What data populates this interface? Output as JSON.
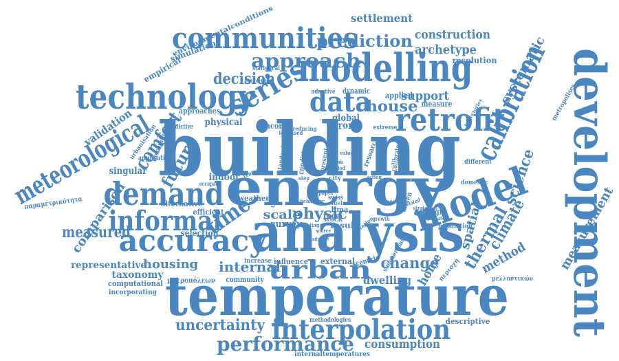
{
  "color": "#4a86bf",
  "words": [
    {
      "text": "building"
    },
    {
      "text": "energy"
    },
    {
      "text": "analysis"
    },
    {
      "text": "temperature"
    },
    {
      "text": "development"
    },
    {
      "text": "modelling"
    },
    {
      "text": "communities"
    },
    {
      "text": "technology"
    },
    {
      "text": "model"
    },
    {
      "text": "retrofit"
    },
    {
      "text": "calibration"
    },
    {
      "text": "interpolation"
    },
    {
      "text": "accuracy"
    },
    {
      "text": "demand"
    },
    {
      "text": "informal"
    },
    {
      "text": "urban"
    },
    {
      "text": "data"
    },
    {
      "text": "series"
    },
    {
      "text": "meteorological"
    },
    {
      "text": "approach"
    },
    {
      "text": "prediction"
    },
    {
      "text": "performance"
    },
    {
      "text": "uncertainty"
    },
    {
      "text": "house"
    },
    {
      "text": "time"
    },
    {
      "text": "comfort"
    },
    {
      "text": "future"
    },
    {
      "text": "decision"
    },
    {
      "text": "thermal"
    },
    {
      "text": "climate"
    },
    {
      "text": "science"
    },
    {
      "text": "systematic"
    },
    {
      "text": "spatial"
    },
    {
      "text": "method"
    },
    {
      "text": "measurement"
    },
    {
      "text": "settlement"
    },
    {
      "text": "construction"
    },
    {
      "text": "archetype"
    },
    {
      "text": "internal"
    },
    {
      "text": "housing"
    },
    {
      "text": "change"
    },
    {
      "text": "measured"
    },
    {
      "text": "consumption"
    },
    {
      "text": "dwelling"
    },
    {
      "text": "home"
    },
    {
      "text": "scale"
    },
    {
      "text": "physic"
    },
    {
      "text": "comparison"
    },
    {
      "text": "support"
    },
    {
      "text": "representative"
    },
    {
      "text": "taxonomy"
    },
    {
      "text": "simulation"
    },
    {
      "text": "empirical"
    },
    {
      "text": "environmentalconditions"
    },
    {
      "text": "resolution"
    },
    {
      "text": "validation"
    },
    {
      "text": "singular"
    },
    {
      "text": "selection"
    },
    {
      "text": "computational"
    },
    {
      "text": "incorporating"
    },
    {
      "text": "descriptive"
    },
    {
      "text": "internaltemperatures"
    },
    {
      "text": "methodologies"
    },
    {
      "text": "population"
    },
    {
      "text": "design"
    },
    {
      "text": "domestic"
    },
    {
      "text": "different"
    },
    {
      "text": "calibrated"
    },
    {
      "text": "survey"
    },
    {
      "text": "result"
    },
    {
      "text": "room"
    },
    {
      "text": "lima"
    },
    {
      "text": "stock"
    },
    {
      "text": "indoor"
    },
    {
      "text": "weather"
    },
    {
      "text": "alternative"
    },
    {
      "text": "efficient"
    },
    {
      "text": "physical"
    },
    {
      "text": "income"
    },
    {
      "text": "error"
    },
    {
      "text": "global"
    },
    {
      "text": "applied"
    },
    {
      "text": "measure"
    },
    {
      "text": "dynamic"
    },
    {
      "text": "adaptive"
    },
    {
      "text": "statistical"
    },
    {
      "text": "approaches"
    },
    {
      "text": "predictive"
    },
    {
      "text": "application"
    },
    {
      "text": "urbanisation"
    },
    {
      "text": "discomfort"
    },
    {
      "text": "community"
    },
    {
      "text": "influence"
    },
    {
      "text": "external"
    },
    {
      "text": "scenario"
    },
    {
      "text": "increase"
    },
    {
      "text": "metropolises"
    },
    {
      "text": "μελλοντικών"
    },
    {
      "text": "μητροπόλεων"
    },
    {
      "text": "παραμετρικότητα"
    },
    {
      "text": "περιοχή"
    },
    {
      "text": "extreme"
    },
    {
      "text": "research"
    },
    {
      "text": "condition"
    },
    {
      "text": "standard"
    },
    {
      "text": "present"
    },
    {
      "text": "space"
    },
    {
      "text": "swiss"
    },
    {
      "text": "driven"
    },
    {
      "text": "annual"
    },
    {
      "text": "growth"
    },
    {
      "text": "criterion"
    },
    {
      "text": "summertime"
    },
    {
      "text": "trajectories"
    },
    {
      "text": "authorities"
    },
    {
      "text": "localised"
    },
    {
      "text": "reducing"
    },
    {
      "text": "thermally"
    },
    {
      "text": "temporal"
    },
    {
      "text": "occupant"
    },
    {
      "text": "city"
    },
    {
      "text": "fuel"
    },
    {
      "text": "step"
    },
    {
      "text": "paper"
    },
    {
      "text": "period"
    },
    {
      "text": "risk"
    },
    {
      "text": "action"
    },
    {
      "text": "value"
    },
    {
      "text": "related"
    },
    {
      "text": "strategies"
    },
    {
      "text": "evaluate"
    },
    {
      "text": "accurate"
    },
    {
      "text": "testing"
    },
    {
      "text": "adverse"
    },
    {
      "text": "source"
    },
    {
      "text": "behaviour"
    }
  ]
}
